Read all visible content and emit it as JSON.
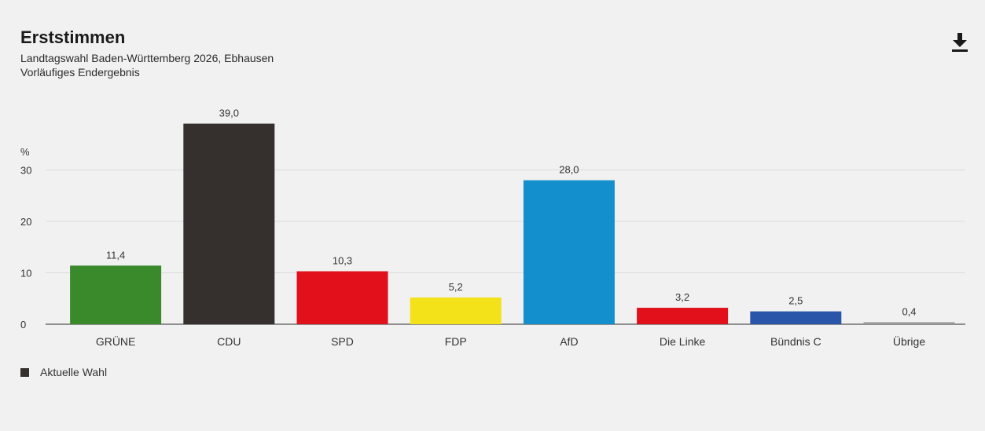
{
  "header": {
    "title": "Erststimmen",
    "subtitle": "Landtagswahl Baden-Württemberg 2026, Ebhausen",
    "status": "Vorläufiges Endergebnis"
  },
  "toolbar": {
    "download_icon": "download-icon"
  },
  "chart_data": {
    "type": "bar",
    "ylabel": "%",
    "ylim": [
      0,
      40
    ],
    "yticks": [
      "0",
      "10",
      "20",
      "30"
    ],
    "grid": true,
    "categories": [
      "GRÜNE",
      "CDU",
      "SPD",
      "FDP",
      "AfD",
      "Die Linke",
      "Bündnis C",
      "Übrige"
    ],
    "values": [
      11.4,
      39.0,
      10.3,
      5.2,
      28.0,
      3.2,
      2.5,
      0.4
    ],
    "value_labels": [
      "11,4",
      "39,0",
      "10,3",
      "5,2",
      "28,0",
      "3,2",
      "2,5",
      "0,4"
    ],
    "colors": [
      "#3a8a2c",
      "#35302d",
      "#e1101a",
      "#f3e21a",
      "#148fcd",
      "#e1101a",
      "#2956a8",
      "#9b9b9b"
    ],
    "legend": [
      {
        "label": "Aktuelle Wahl",
        "color": "#35302d"
      }
    ],
    "legend_placement": "bottom-left"
  }
}
